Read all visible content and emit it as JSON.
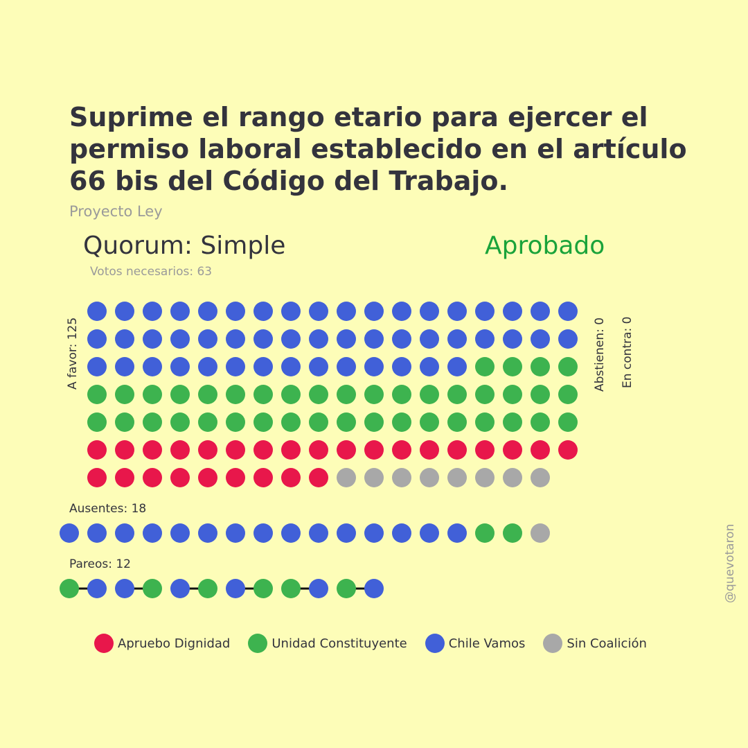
{
  "header": {
    "title": "Suprime el rango etario para ejercer el permiso laboral establecido en el artículo 66 bis del Código del Trabajo.",
    "subtitle": "Proyecto Ley",
    "quorum": "Quorum: Simple",
    "result": "Aprobado",
    "votos_necesarios": "Votos necesarios: 63"
  },
  "labels": {
    "a_favor": "A favor: 125",
    "abstienen": "Abstienen: 0",
    "en_contra": "En contra: 0",
    "ausentes": "Ausentes: 18",
    "pareos": "Pareos: 12",
    "watermark": "@quevotaron"
  },
  "colors": {
    "background": "#fdfdb8",
    "result": "#1aa33a"
  },
  "chart_data": {
    "type": "dot-matrix",
    "coalitions": [
      {
        "key": "AD",
        "name": "Apruebo Dignidad",
        "color": "#e8174b"
      },
      {
        "key": "UC",
        "name": "Unidad Constituyente",
        "color": "#3db34f"
      },
      {
        "key": "CV",
        "name": "Chile Vamos",
        "color": "#4160d8"
      },
      {
        "key": "SC",
        "name": "Sin Coalición",
        "color": "#a8a8a8"
      }
    ],
    "a_favor": {
      "total": 125,
      "counts": {
        "CV": 50,
        "UC": 40,
        "AD": 27,
        "SC": 8
      }
    },
    "abstienen": {
      "total": 0
    },
    "en_contra": {
      "total": 0
    },
    "ausentes": {
      "total": 18,
      "counts": {
        "CV": 15,
        "UC": 2,
        "SC": 1
      }
    },
    "pareos": {
      "total": 12,
      "pairs": [
        [
          "UC",
          "CV"
        ],
        [
          "CV",
          "UC"
        ],
        [
          "CV",
          "UC"
        ],
        [
          "CV",
          "UC"
        ],
        [
          "UC",
          "CV"
        ],
        [
          "UC",
          "CV"
        ]
      ]
    }
  }
}
